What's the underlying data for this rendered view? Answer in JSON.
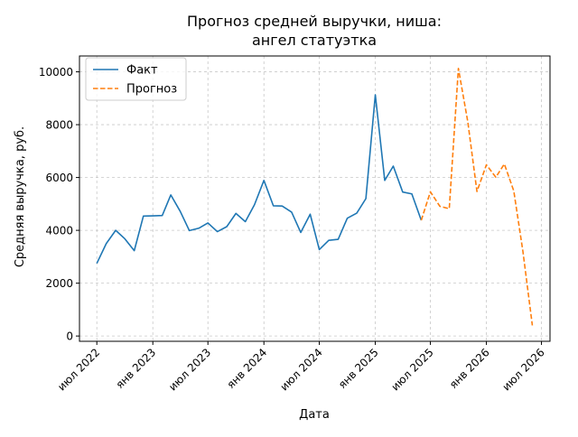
{
  "chart_data": {
    "type": "line",
    "title_line1": "Прогноз средней выручки, ниша:",
    "title_line2": "ангел статуэтка",
    "xlabel": "Дата",
    "ylabel": "Средняя выручка, руб.",
    "xlim": [
      "2022-05-05",
      "2026-07-29"
    ],
    "ylim": [
      -200,
      10600
    ],
    "grid": true,
    "legend_placement": "top-left",
    "x_ticks": [
      {
        "date": "2022-07-01",
        "label": "июл 2022"
      },
      {
        "date": "2023-01-01",
        "label": "янв 2023"
      },
      {
        "date": "2023-07-01",
        "label": "июл 2023"
      },
      {
        "date": "2024-01-01",
        "label": "янв 2024"
      },
      {
        "date": "2024-07-01",
        "label": "июл 2024"
      },
      {
        "date": "2025-01-01",
        "label": "янв 2025"
      },
      {
        "date": "2025-07-01",
        "label": "июл 2025"
      },
      {
        "date": "2026-01-01",
        "label": "янв 2026"
      },
      {
        "date": "2026-07-01",
        "label": "июл 2026"
      }
    ],
    "y_ticks": [
      {
        "value": 0,
        "label": "0"
      },
      {
        "value": 2000,
        "label": "2000"
      },
      {
        "value": 4000,
        "label": "4000"
      },
      {
        "value": 6000,
        "label": "6000"
      },
      {
        "value": 8000,
        "label": "8000"
      },
      {
        "value": 10000,
        "label": "10000"
      }
    ],
    "series": [
      {
        "name": "Факт",
        "color": "#1f77b4",
        "style": "solid",
        "points": [
          {
            "x": "2022-07-01",
            "y": 2750
          },
          {
            "x": "2022-08-01",
            "y": 3500
          },
          {
            "x": "2022-09-01",
            "y": 4000
          },
          {
            "x": "2022-10-01",
            "y": 3680
          },
          {
            "x": "2022-11-01",
            "y": 3230
          },
          {
            "x": "2022-12-01",
            "y": 4540
          },
          {
            "x": "2023-01-01",
            "y": 4550
          },
          {
            "x": "2023-02-01",
            "y": 4560
          },
          {
            "x": "2023-03-01",
            "y": 5340
          },
          {
            "x": "2023-04-01",
            "y": 4720
          },
          {
            "x": "2023-05-01",
            "y": 3990
          },
          {
            "x": "2023-06-01",
            "y": 4080
          },
          {
            "x": "2023-07-01",
            "y": 4280
          },
          {
            "x": "2023-08-01",
            "y": 3950
          },
          {
            "x": "2023-09-01",
            "y": 4140
          },
          {
            "x": "2023-10-01",
            "y": 4640
          },
          {
            "x": "2023-11-01",
            "y": 4330
          },
          {
            "x": "2023-12-01",
            "y": 4970
          },
          {
            "x": "2024-01-01",
            "y": 5890
          },
          {
            "x": "2024-02-01",
            "y": 4930
          },
          {
            "x": "2024-03-01",
            "y": 4920
          },
          {
            "x": "2024-04-01",
            "y": 4690
          },
          {
            "x": "2024-05-01",
            "y": 3920
          },
          {
            "x": "2024-06-01",
            "y": 4610
          },
          {
            "x": "2024-07-01",
            "y": 3270
          },
          {
            "x": "2024-08-01",
            "y": 3620
          },
          {
            "x": "2024-09-01",
            "y": 3660
          },
          {
            "x": "2024-10-01",
            "y": 4460
          },
          {
            "x": "2024-11-01",
            "y": 4650
          },
          {
            "x": "2024-12-01",
            "y": 5200
          },
          {
            "x": "2025-01-01",
            "y": 9130
          },
          {
            "x": "2025-02-01",
            "y": 5890
          },
          {
            "x": "2025-03-01",
            "y": 6430
          },
          {
            "x": "2025-04-01",
            "y": 5450
          },
          {
            "x": "2025-05-01",
            "y": 5380
          },
          {
            "x": "2025-06-01",
            "y": 4380
          }
        ]
      },
      {
        "name": "Прогноз",
        "color": "#ff7f0e",
        "style": "dashed",
        "points": [
          {
            "x": "2025-06-01",
            "y": 4380
          },
          {
            "x": "2025-07-01",
            "y": 5460
          },
          {
            "x": "2025-08-01",
            "y": 4910
          },
          {
            "x": "2025-09-01",
            "y": 4820
          },
          {
            "x": "2025-10-01",
            "y": 10130
          },
          {
            "x": "2025-11-01",
            "y": 8100
          },
          {
            "x": "2025-12-01",
            "y": 5470
          },
          {
            "x": "2026-01-01",
            "y": 6480
          },
          {
            "x": "2026-02-01",
            "y": 6010
          },
          {
            "x": "2026-03-01",
            "y": 6510
          },
          {
            "x": "2026-04-01",
            "y": 5490
          },
          {
            "x": "2026-05-01",
            "y": 3200
          },
          {
            "x": "2026-06-01",
            "y": 400
          }
        ]
      }
    ]
  }
}
